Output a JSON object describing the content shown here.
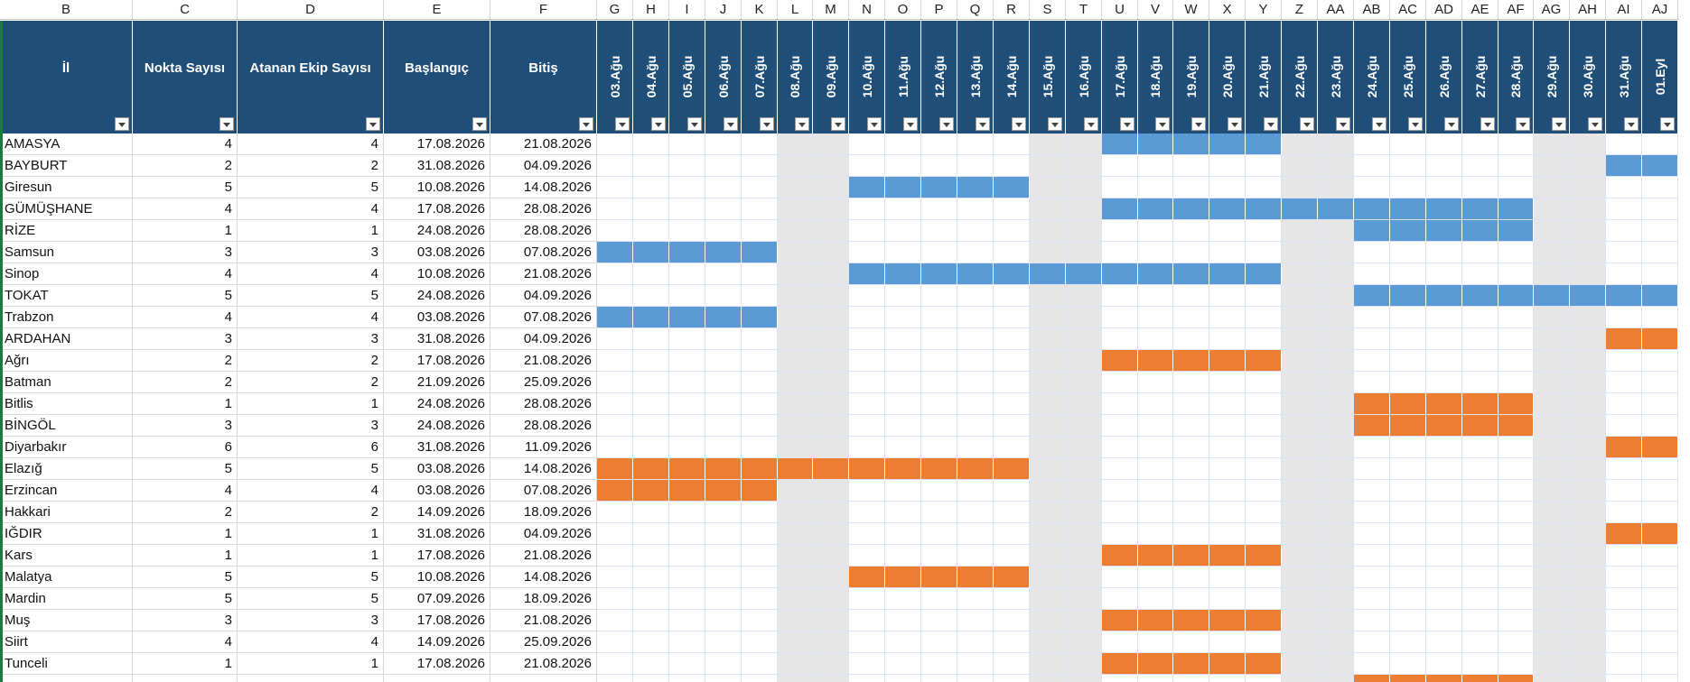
{
  "sheet": {
    "column_letters": [
      "B",
      "C",
      "D",
      "E",
      "F",
      "G",
      "H",
      "I",
      "J",
      "K",
      "L",
      "M",
      "N",
      "O",
      "P",
      "Q",
      "R",
      "S",
      "T",
      "U",
      "V",
      "W",
      "X",
      "Y",
      "Z",
      "AA",
      "AB",
      "AC",
      "AD",
      "AE",
      "AF",
      "AG",
      "AH",
      "AI",
      "AJ"
    ],
    "headers": {
      "il": "İl",
      "nokta": "Nokta Sayısı",
      "ekip": "Atanan Ekip Sayısı",
      "baslangic": "Başlangıç",
      "bitis": "Bitiş"
    },
    "dates": [
      "03.Ağu",
      "04.Ağu",
      "05.Ağu",
      "06.Ağu",
      "07.Ağu",
      "08.Ağu",
      "09.Ağu",
      "10.Ağu",
      "11.Ağu",
      "12.Ağu",
      "13.Ağu",
      "14.Ağu",
      "15.Ağu",
      "16.Ağu",
      "17.Ağu",
      "18.Ağu",
      "19.Ağu",
      "20.Ağu",
      "21.Ağu",
      "22.Ağu",
      "23.Ağu",
      "24.Ağu",
      "25.Ağu",
      "26.Ağu",
      "27.Ağu",
      "28.Ağu",
      "29.Ağu",
      "30.Ağu",
      "31.Ağu",
      "01.Eyl"
    ],
    "weekend_columns": [
      5,
      6,
      12,
      13,
      19,
      20,
      26,
      27
    ],
    "colors": {
      "header_bg": "#1f4e79",
      "weekend": "#e7e6e6",
      "group_blue": "#5b9bd5",
      "group_orange": "#ed7d31"
    },
    "rows": [
      {
        "il": "AMASYA",
        "nokta": "4",
        "ekip": "4",
        "baslangic": "17.08.2026",
        "bitis": "21.08.2026",
        "group": "blue",
        "fill_start": 14,
        "fill_end": 18
      },
      {
        "il": "BAYBURT",
        "nokta": "2",
        "ekip": "2",
        "baslangic": "31.08.2026",
        "bitis": "04.09.2026",
        "group": "blue",
        "fill_start": 28,
        "fill_end": 29
      },
      {
        "il": "Giresun",
        "nokta": "5",
        "ekip": "5",
        "baslangic": "10.08.2026",
        "bitis": "14.08.2026",
        "group": "blue",
        "fill_start": 7,
        "fill_end": 11
      },
      {
        "il": "GÜMÜŞHANE",
        "nokta": "4",
        "ekip": "4",
        "baslangic": "17.08.2026",
        "bitis": "28.08.2026",
        "group": "blue",
        "fill_start": 14,
        "fill_end": 25
      },
      {
        "il": "RİZE",
        "nokta": "1",
        "ekip": "1",
        "baslangic": "24.08.2026",
        "bitis": "28.08.2026",
        "group": "blue",
        "fill_start": 21,
        "fill_end": 25
      },
      {
        "il": "Samsun",
        "nokta": "3",
        "ekip": "3",
        "baslangic": "03.08.2026",
        "bitis": "07.08.2026",
        "group": "blue",
        "fill_start": 0,
        "fill_end": 4
      },
      {
        "il": "Sinop",
        "nokta": "4",
        "ekip": "4",
        "baslangic": "10.08.2026",
        "bitis": "21.08.2026",
        "group": "blue",
        "fill_start": 7,
        "fill_end": 18
      },
      {
        "il": "TOKAT",
        "nokta": "5",
        "ekip": "5",
        "baslangic": "24.08.2026",
        "bitis": "04.09.2026",
        "group": "blue",
        "fill_start": 21,
        "fill_end": 29
      },
      {
        "il": "Trabzon",
        "nokta": "4",
        "ekip": "4",
        "baslangic": "03.08.2026",
        "bitis": "07.08.2026",
        "group": "blue",
        "fill_start": 0,
        "fill_end": 4
      },
      {
        "il": "ARDAHAN",
        "nokta": "3",
        "ekip": "3",
        "baslangic": "31.08.2026",
        "bitis": "04.09.2026",
        "group": "orange",
        "fill_start": 28,
        "fill_end": 29
      },
      {
        "il": "Ağrı",
        "nokta": "2",
        "ekip": "2",
        "baslangic": "17.08.2026",
        "bitis": "21.08.2026",
        "group": "orange",
        "fill_start": 14,
        "fill_end": 18
      },
      {
        "il": "Batman",
        "nokta": "2",
        "ekip": "2",
        "baslangic": "21.09.2026",
        "bitis": "25.09.2026",
        "group": "orange",
        "fill_start": -1,
        "fill_end": -1
      },
      {
        "il": "Bitlis",
        "nokta": "1",
        "ekip": "1",
        "baslangic": "24.08.2026",
        "bitis": "28.08.2026",
        "group": "orange",
        "fill_start": 21,
        "fill_end": 25
      },
      {
        "il": "BİNGÖL",
        "nokta": "3",
        "ekip": "3",
        "baslangic": "24.08.2026",
        "bitis": "28.08.2026",
        "group": "orange",
        "fill_start": 21,
        "fill_end": 25
      },
      {
        "il": "Diyarbakır",
        "nokta": "6",
        "ekip": "6",
        "baslangic": "31.08.2026",
        "bitis": "11.09.2026",
        "group": "orange",
        "fill_start": 28,
        "fill_end": 29
      },
      {
        "il": "Elazığ",
        "nokta": "5",
        "ekip": "5",
        "baslangic": "03.08.2026",
        "bitis": "14.08.2026",
        "group": "orange",
        "fill_start": 0,
        "fill_end": 11
      },
      {
        "il": "Erzincan",
        "nokta": "4",
        "ekip": "4",
        "baslangic": "03.08.2026",
        "bitis": "07.08.2026",
        "group": "orange",
        "fill_start": 0,
        "fill_end": 4
      },
      {
        "il": "Hakkari",
        "nokta": "2",
        "ekip": "2",
        "baslangic": "14.09.2026",
        "bitis": "18.09.2026",
        "group": "orange",
        "fill_start": -1,
        "fill_end": -1
      },
      {
        "il": "IĞDIR",
        "nokta": "1",
        "ekip": "1",
        "baslangic": "31.08.2026",
        "bitis": "04.09.2026",
        "group": "orange",
        "fill_start": 28,
        "fill_end": 29
      },
      {
        "il": "Kars",
        "nokta": "1",
        "ekip": "1",
        "baslangic": "17.08.2026",
        "bitis": "21.08.2026",
        "group": "orange",
        "fill_start": 14,
        "fill_end": 18
      },
      {
        "il": "Malatya",
        "nokta": "5",
        "ekip": "5",
        "baslangic": "10.08.2026",
        "bitis": "14.08.2026",
        "group": "orange",
        "fill_start": 7,
        "fill_end": 11
      },
      {
        "il": "Mardin",
        "nokta": "5",
        "ekip": "5",
        "baslangic": "07.09.2026",
        "bitis": "18.09.2026",
        "group": "orange",
        "fill_start": -1,
        "fill_end": -1
      },
      {
        "il": "Muş",
        "nokta": "3",
        "ekip": "3",
        "baslangic": "17.08.2026",
        "bitis": "21.08.2026",
        "group": "orange",
        "fill_start": 14,
        "fill_end": 18
      },
      {
        "il": "Siirt",
        "nokta": "4",
        "ekip": "4",
        "baslangic": "14.09.2026",
        "bitis": "25.09.2026",
        "group": "orange",
        "fill_start": -1,
        "fill_end": -1
      },
      {
        "il": "Tunceli",
        "nokta": "1",
        "ekip": "1",
        "baslangic": "17.08.2026",
        "bitis": "21.08.2026",
        "group": "orange",
        "fill_start": 14,
        "fill_end": 18
      }
    ],
    "partial_next_row": {
      "group": "orange",
      "fill_start": 21,
      "fill_end": 25
    }
  }
}
